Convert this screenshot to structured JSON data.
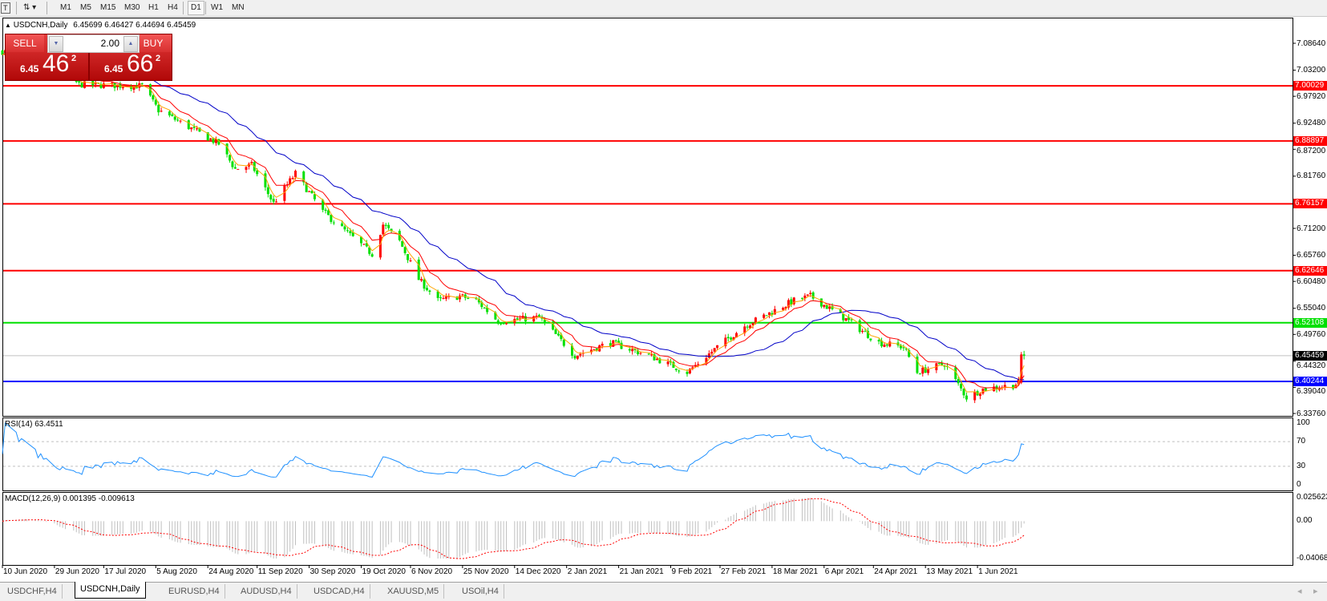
{
  "toolbar": {
    "timeframes": [
      "M1",
      "M5",
      "M15",
      "M30",
      "H1",
      "H4",
      "D1",
      "W1",
      "MN"
    ],
    "active_timeframe": "D1"
  },
  "chart": {
    "title": "USDCNH,Daily",
    "ohlc": "6.45699 6.46427 6.44694 6.45459",
    "colors": {
      "up_candle": "#ff0000",
      "down_candle": "#00e000",
      "ma_fast": "#ffa500",
      "ma_mid": "#ff0000",
      "ma_slow": "#0000c8",
      "grid_current": "#c0c0c0"
    },
    "price_ticks": [
      "7.08640",
      "7.03200",
      "6.97920",
      "6.92480",
      "6.87200",
      "6.81760",
      "6.71200",
      "6.65760",
      "6.60480",
      "6.55040",
      "6.49760",
      "6.44320",
      "6.39040",
      "6.33760"
    ],
    "price_range": [
      6.3376,
      7.0864
    ],
    "horizontal_lines": [
      {
        "price": "7.00029",
        "color": "#ff0000"
      },
      {
        "price": "6.88897",
        "color": "#ff0000"
      },
      {
        "price": "6.76157",
        "color": "#ff0000"
      },
      {
        "price": "6.62646",
        "color": "#ff0000"
      },
      {
        "price": "6.52108",
        "color": "#00e000"
      },
      {
        "price": "6.40244",
        "color": "#0000ff"
      }
    ],
    "current_price": "6.45459",
    "last_bar": {
      "open": 6.45699,
      "high": 6.46427,
      "low": 6.44694,
      "close": 6.45459
    },
    "price_path": [
      [
        "2020-06-10",
        7.07
      ],
      [
        "2020-06-24",
        7.06
      ],
      [
        "2020-07-08",
        7.003
      ],
      [
        "2020-07-31",
        7.0
      ],
      [
        "2020-08-06",
        6.951
      ],
      [
        "2020-08-28",
        6.883
      ],
      [
        "2020-09-03",
        6.832
      ],
      [
        "2020-09-09",
        6.84
      ],
      [
        "2020-09-17",
        6.763
      ],
      [
        "2020-09-25",
        6.823
      ],
      [
        "2020-10-05",
        6.746
      ],
      [
        "2020-10-12",
        6.712
      ],
      [
        "2020-10-23",
        6.66
      ],
      [
        "2020-10-27",
        6.72
      ],
      [
        "2020-11-02",
        6.686
      ],
      [
        "2020-11-09",
        6.609
      ],
      [
        "2020-11-16",
        6.566
      ],
      [
        "2020-11-24",
        6.575
      ],
      [
        "2020-11-30",
        6.566
      ],
      [
        "2020-12-08",
        6.524
      ],
      [
        "2020-12-23",
        6.532
      ],
      [
        "2021-01-05",
        6.455
      ],
      [
        "2021-01-18",
        6.481
      ],
      [
        "2021-02-01",
        6.455
      ],
      [
        "2021-02-15",
        6.421
      ],
      [
        "2021-02-26",
        6.472
      ],
      [
        "2021-03-08",
        6.515
      ],
      [
        "2021-03-26",
        6.566
      ],
      [
        "2021-04-01",
        6.575
      ],
      [
        "2021-04-13",
        6.532
      ],
      [
        "2021-04-26",
        6.481
      ],
      [
        "2021-05-05",
        6.472
      ],
      [
        "2021-05-10",
        6.421
      ],
      [
        "2021-05-20",
        6.438
      ],
      [
        "2021-05-28",
        6.37
      ],
      [
        "2021-06-03",
        6.387
      ],
      [
        "2021-06-14",
        6.395
      ],
      [
        "2021-06-16",
        6.4
      ],
      [
        "2021-06-17",
        6.457
      ],
      [
        "2021-06-18",
        6.45459
      ]
    ],
    "date_labels": [
      "10 Jun 2020",
      "29 Jun 2020",
      "17 Jul 2020",
      "5 Aug 2020",
      "24 Aug 2020",
      "11 Sep 2020",
      "30 Sep 2020",
      "19 Oct 2020",
      "6 Nov 2020",
      "25 Nov 2020",
      "14 Dec 2020",
      "2 Jan 2021",
      "21 Jan 2021",
      "9 Feb 2021",
      "27 Feb 2021",
      "18 Mar 2021",
      "6 Apr 2021",
      "24 Apr 2021",
      "13 May 2021",
      "1 Jun 2021"
    ]
  },
  "trade_panel": {
    "sell_label": "SELL",
    "buy_label": "BUY",
    "lot": "2.00",
    "sell_price": {
      "prefix": "6.45",
      "big": "46",
      "sup": "2"
    },
    "buy_price": {
      "prefix": "6.45",
      "big": "66",
      "sup": "2"
    }
  },
  "rsi": {
    "title": "RSI(14) 63.4511",
    "levels": [
      "100",
      "70",
      "30",
      "0"
    ],
    "color": "#1e90ff"
  },
  "macd": {
    "title": "MACD(12,26,9) 0.001395 -0.009613",
    "ticks": [
      "0.025623",
      "0.00",
      "-0.040687"
    ],
    "range": [
      -0.040687,
      0.025623
    ],
    "histogram_color": "#c0c0c0",
    "signal_color": "#ff0000"
  },
  "tabs": [
    {
      "label": "USDCHF,H4"
    },
    {
      "label": "USDCNH,Daily",
      "active": true
    },
    {
      "label": "EURUSD,H4"
    },
    {
      "label": "AUDUSD,H4"
    },
    {
      "label": "USDCAD,H4"
    },
    {
      "label": "XAUUSD,M5"
    },
    {
      "label": "USOil,H4"
    }
  ]
}
